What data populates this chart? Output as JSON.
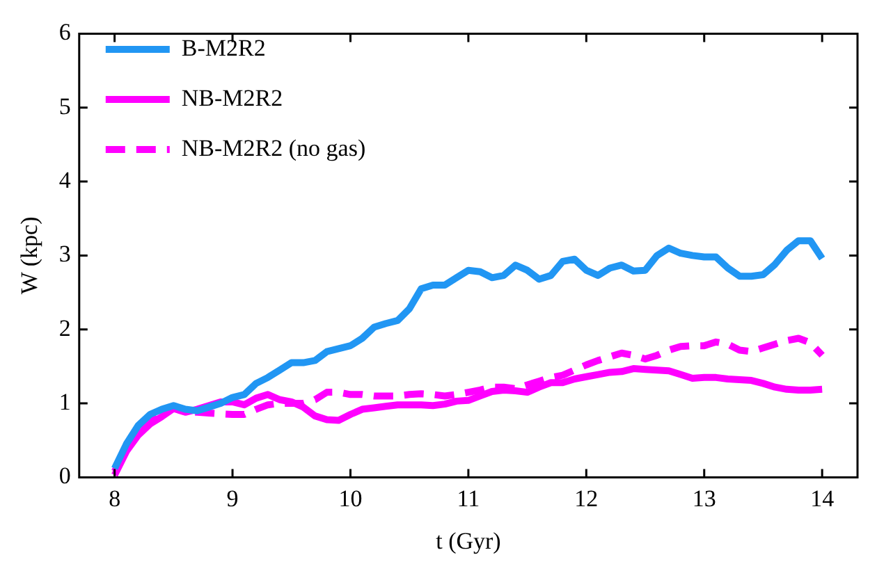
{
  "chart_data": {
    "type": "line",
    "xlabel": "t (Gyr)",
    "ylabel": "W (kpc)",
    "x": [
      8.0,
      8.1,
      8.2,
      8.3,
      8.4,
      8.5,
      8.6,
      8.7,
      8.8,
      8.9,
      9.0,
      9.1,
      9.2,
      9.3,
      9.4,
      9.5,
      9.6,
      9.7,
      9.8,
      9.9,
      10.0,
      10.1,
      10.2,
      10.3,
      10.4,
      10.5,
      10.6,
      10.7,
      10.8,
      10.9,
      11.0,
      11.1,
      11.2,
      11.3,
      11.4,
      11.5,
      11.6,
      11.7,
      11.8,
      11.9,
      12.0,
      12.1,
      12.2,
      12.3,
      12.4,
      12.5,
      12.6,
      12.7,
      12.8,
      12.9,
      13.0,
      13.1,
      13.2,
      13.3,
      13.4,
      13.5,
      13.6,
      13.7,
      13.8,
      13.9,
      14.0
    ],
    "series": [
      {
        "name": "B-M2R2",
        "color": "#2196f3",
        "line_style": "solid",
        "values": [
          0.12,
          0.45,
          0.7,
          0.85,
          0.92,
          0.97,
          0.92,
          0.9,
          0.95,
          1.0,
          1.08,
          1.12,
          1.27,
          1.35,
          1.45,
          1.55,
          1.55,
          1.58,
          1.7,
          1.74,
          1.78,
          1.88,
          2.03,
          2.08,
          2.12,
          2.28,
          2.55,
          2.6,
          2.6,
          2.7,
          2.8,
          2.78,
          2.7,
          2.73,
          2.87,
          2.8,
          2.68,
          2.73,
          2.92,
          2.95,
          2.8,
          2.73,
          2.83,
          2.87,
          2.79,
          2.8,
          3.0,
          3.1,
          3.03,
          3.0,
          2.98,
          2.98,
          2.83,
          2.72,
          2.72,
          2.74,
          2.88,
          3.07,
          3.2,
          3.2,
          2.96
        ]
      },
      {
        "name": "NB-M2R2",
        "color": "#ff00ff",
        "line_style": "solid",
        "values": [
          0.03,
          0.35,
          0.57,
          0.72,
          0.82,
          0.93,
          0.88,
          0.92,
          0.97,
          1.02,
          1.02,
          0.98,
          1.07,
          1.12,
          1.05,
          1.02,
          0.95,
          0.83,
          0.78,
          0.77,
          0.85,
          0.92,
          0.94,
          0.96,
          0.98,
          0.98,
          0.98,
          0.97,
          0.99,
          1.03,
          1.04,
          1.1,
          1.16,
          1.18,
          1.17,
          1.15,
          1.22,
          1.28,
          1.28,
          1.33,
          1.36,
          1.39,
          1.42,
          1.43,
          1.47,
          1.46,
          1.45,
          1.44,
          1.39,
          1.34,
          1.35,
          1.35,
          1.33,
          1.32,
          1.31,
          1.27,
          1.22,
          1.19,
          1.18,
          1.18,
          1.19
        ]
      },
      {
        "name": "NB-M2R2 (no gas)",
        "color": "#ff00ff",
        "line_style": "dashed",
        "values": [
          0.08,
          0.4,
          0.62,
          0.75,
          0.85,
          0.95,
          0.88,
          0.88,
          0.87,
          0.86,
          0.85,
          0.85,
          0.92,
          0.98,
          1.0,
          1.0,
          1.0,
          1.05,
          1.15,
          1.15,
          1.12,
          1.12,
          1.1,
          1.1,
          1.1,
          1.12,
          1.13,
          1.12,
          1.1,
          1.12,
          1.15,
          1.18,
          1.22,
          1.22,
          1.2,
          1.25,
          1.3,
          1.35,
          1.38,
          1.45,
          1.52,
          1.58,
          1.63,
          1.68,
          1.65,
          1.6,
          1.65,
          1.72,
          1.77,
          1.78,
          1.78,
          1.83,
          1.8,
          1.72,
          1.7,
          1.75,
          1.8,
          1.85,
          1.88,
          1.82,
          1.65
        ]
      }
    ],
    "xlim": [
      7.7,
      14.3
    ],
    "xticks": [
      8,
      9,
      10,
      11,
      12,
      13,
      14
    ],
    "ylim": [
      0,
      6
    ],
    "yticks": [
      0,
      1,
      2,
      3,
      4,
      5,
      6
    ],
    "grid": false,
    "legend": "top left",
    "marker": "none"
  }
}
